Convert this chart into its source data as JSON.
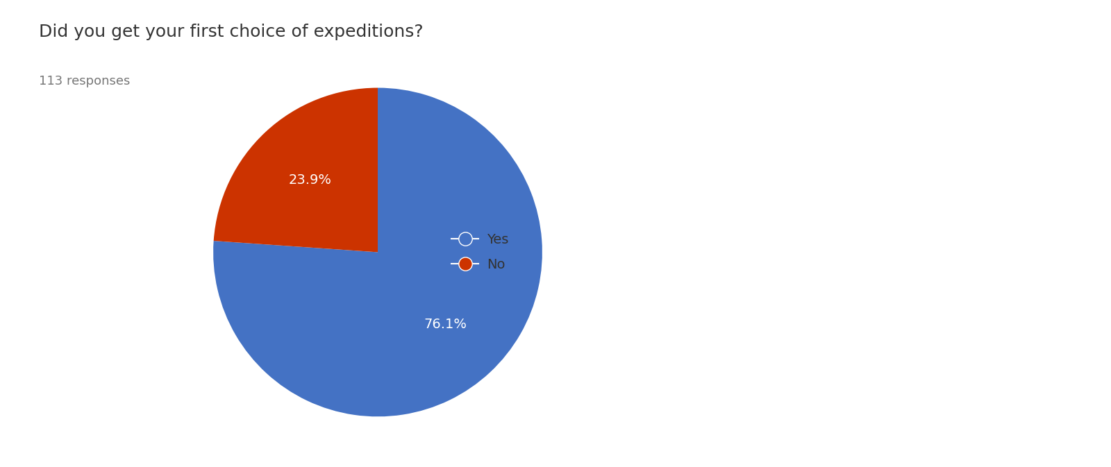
{
  "title": "Did you get your first choice of expeditions?",
  "subtitle": "113 responses",
  "labels": [
    "Yes",
    "No"
  ],
  "values": [
    76.1,
    23.9
  ],
  "colors": [
    "#4472C4",
    "#CC3300"
  ],
  "pct_labels": [
    "76.1%",
    "23.9%"
  ],
  "startangle": 90,
  "background_color": "#ffffff",
  "title_fontsize": 18,
  "subtitle_fontsize": 13,
  "legend_fontsize": 14,
  "pct_fontsize": 14,
  "text_color": "#333333",
  "subtitle_color": "#777777"
}
